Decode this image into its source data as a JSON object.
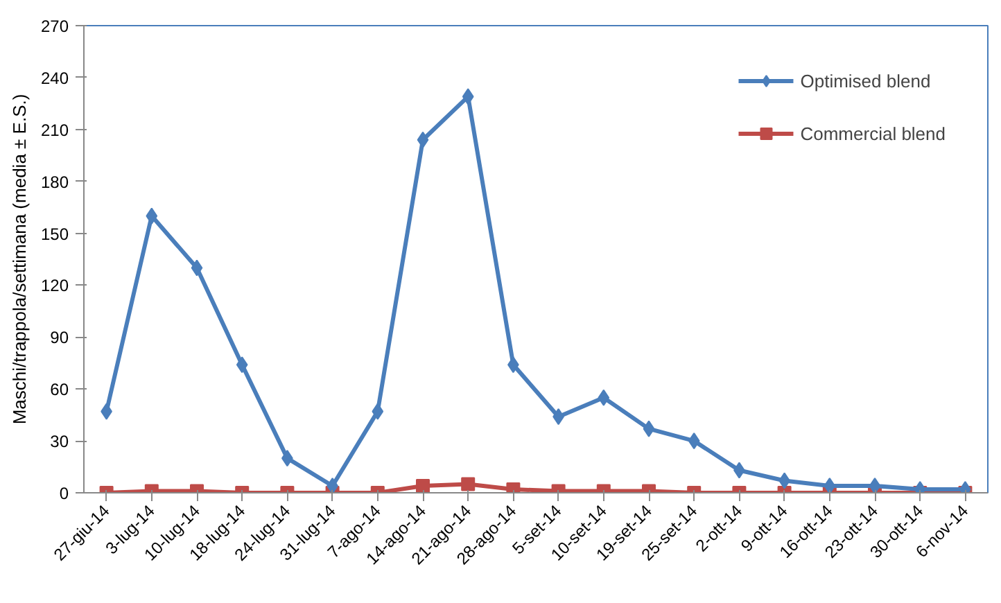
{
  "chart_data": {
    "type": "line",
    "ylabel": "Maschi/trappola/settimana (media ± E.S.)",
    "categories": [
      "27-giu-14",
      "3-lug-14",
      "10-lug-14",
      "18-lug-14",
      "24-lug-14",
      "31-lug-14",
      "7-ago-14",
      "14-ago-14",
      "21-ago-14",
      "28-ago-14",
      "5-set-14",
      "10-set-14",
      "19-set-14",
      "25-set-14",
      "2-ott-14",
      "9-ott-14",
      "16-ott-14",
      "23-ott-14",
      "30-ott-14",
      "6-nov-14"
    ],
    "series": [
      {
        "name": "Optimised blend",
        "color": "#4a7ebb",
        "marker": "diamond",
        "values": [
          47,
          160,
          130,
          74,
          20,
          4,
          47,
          204,
          229,
          74,
          44,
          55,
          37,
          30,
          13,
          7,
          4,
          4,
          2,
          2
        ]
      },
      {
        "name": "Commercial blend",
        "color": "#be4b48",
        "marker": "square",
        "values": [
          0,
          1,
          1,
          0,
          0,
          0,
          0,
          4,
          5,
          2,
          1,
          1,
          1,
          0,
          0,
          0,
          0,
          0,
          0,
          0
        ]
      }
    ],
    "ylim": [
      0,
      270
    ],
    "yticks": [
      0,
      30,
      60,
      90,
      120,
      150,
      180,
      210,
      240,
      270
    ],
    "grid": false,
    "legend": "top right",
    "line_style": "solid"
  }
}
